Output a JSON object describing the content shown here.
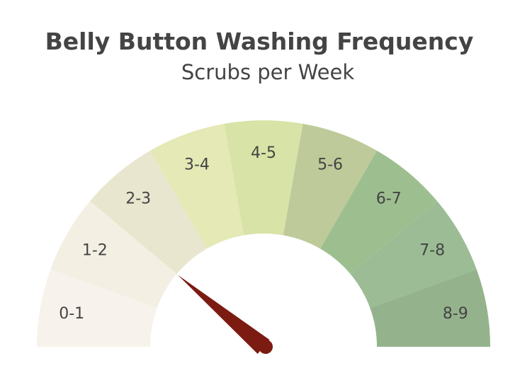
{
  "chart_data": {
    "type": "gauge",
    "title": "Belly Button Washing Frequency",
    "subtitle": "Scrubs per Week",
    "range": [
      0,
      9
    ],
    "sectors": [
      {
        "label": "0-1",
        "color": "#F7F2EB"
      },
      {
        "label": "1-2",
        "color": "#F3F0E3"
      },
      {
        "label": "2-3",
        "color": "#E9E6CF"
      },
      {
        "label": "3-4",
        "color": "#E4E9B5"
      },
      {
        "label": "4-5",
        "color": "#D8E3A7"
      },
      {
        "label": "5-6",
        "color": "#BECA99"
      },
      {
        "label": "6-7",
        "color": "#9DBF8F"
      },
      {
        "label": "7-8",
        "color": "#9BBC94"
      },
      {
        "label": "8-9",
        "color": "#94B38C"
      }
    ],
    "needle_value": 2.0,
    "needle_color": "#7C1B12"
  }
}
